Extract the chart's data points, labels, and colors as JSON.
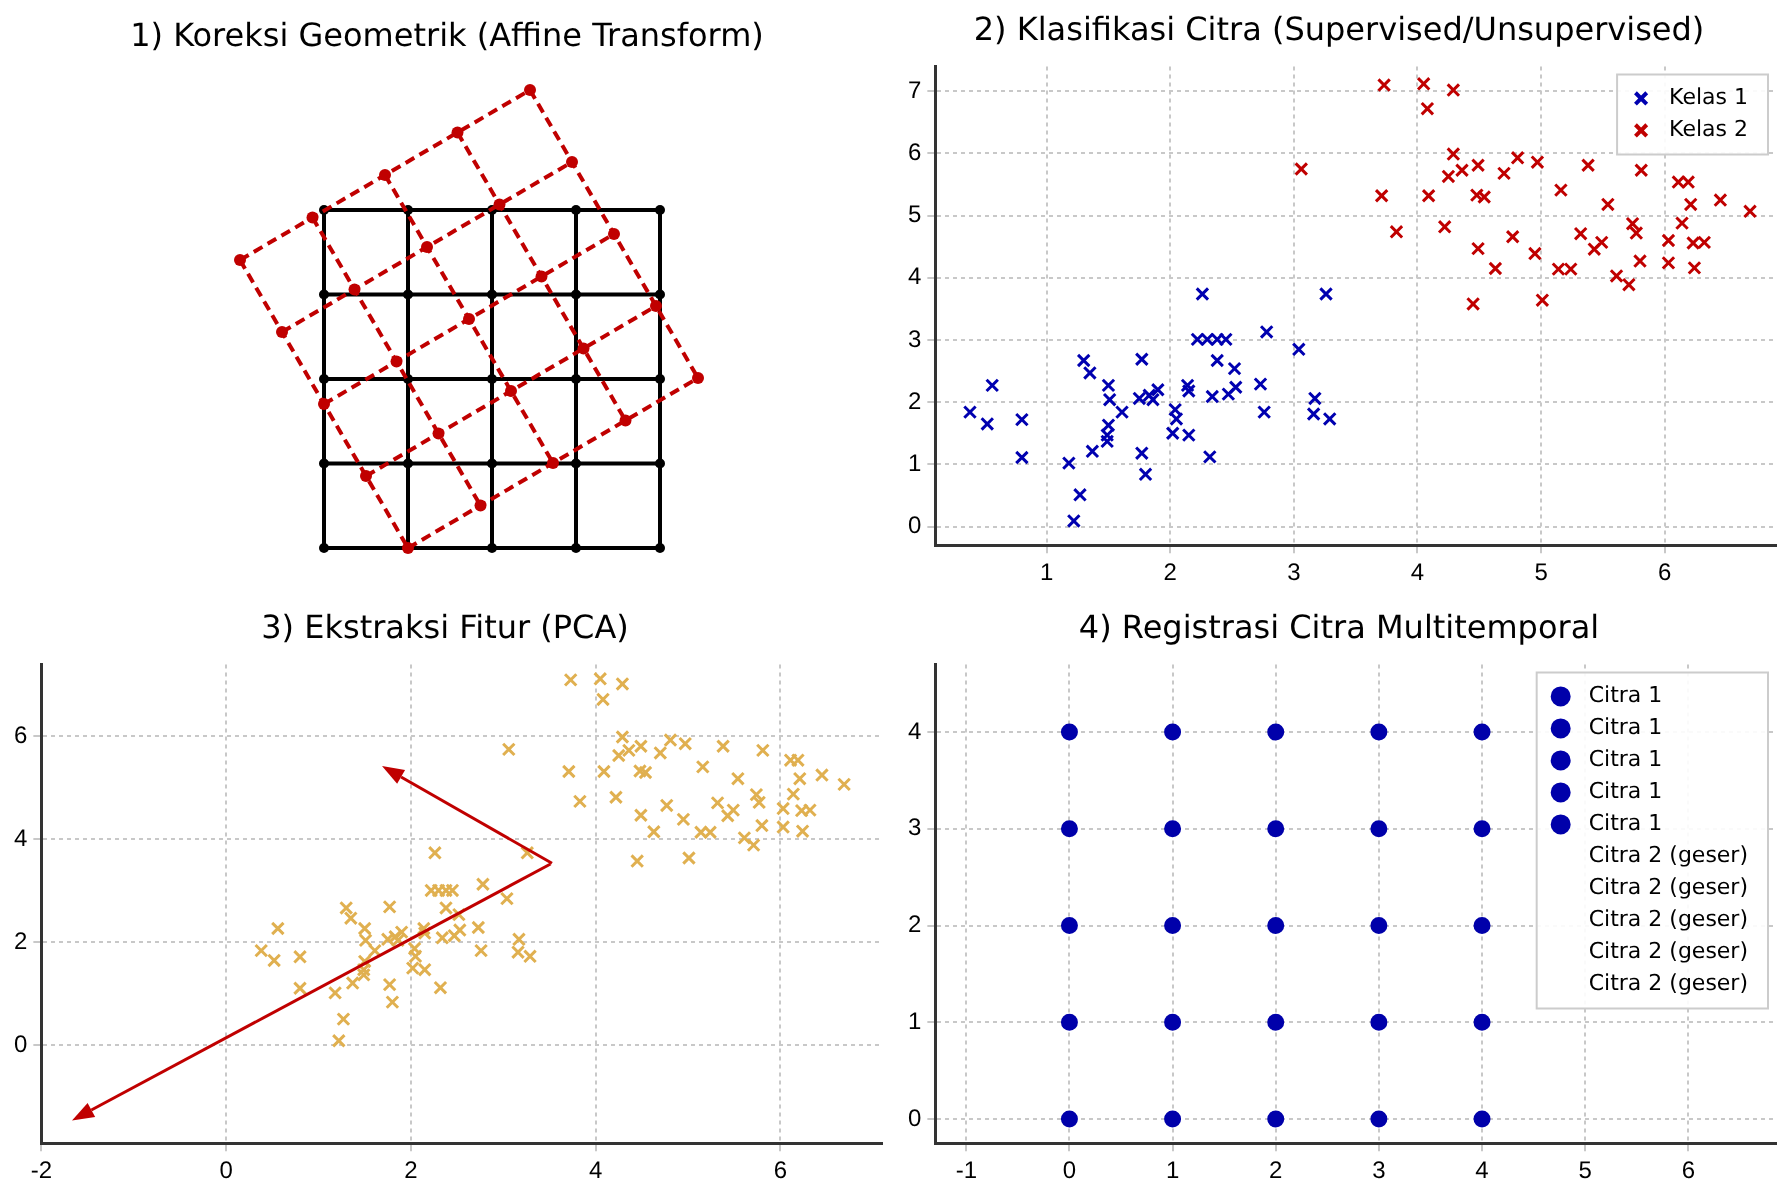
{
  "chart_data": [
    {
      "type": "other",
      "title": "1) Koreksi Geometrik (Affine Transform)"
    },
    {
      "type": "scatter",
      "title": "2) Klasifikasi Citra (Supervised/Unsupervised)",
      "xlim": [
        0.1,
        6.9
      ],
      "xticks": [
        1,
        2,
        3,
        4,
        5,
        6
      ],
      "ylim": [
        -0.3,
        7.4
      ],
      "yticks": [
        0,
        1,
        2,
        3,
        4,
        5,
        6,
        7
      ],
      "grid": true,
      "legend": "top right",
      "marker": "cross",
      "series": [
        {
          "name": "Kelas 1",
          "color": "#0000b0",
          "x": [
            2.26,
            3.26,
            2.78,
            3.04,
            2.22,
            2.3,
            2.38,
            2.45,
            2.38,
            2.52,
            1.3,
            1.35,
            0.56,
            1.77,
            1.5,
            1.51,
            1.61,
            1.75,
            1.83,
            1.9,
            1.86,
            2.14,
            2.15,
            2.34,
            2.47,
            2.53,
            2.73,
            2.76,
            3.17,
            3.16,
            3.29,
            2.04,
            2.05,
            2.02,
            2.15,
            1.5,
            1.49,
            1.49,
            1.37,
            1.77,
            1.8,
            2.32,
            0.38,
            0.52,
            0.8,
            0.8,
            1.18,
            1.27,
            1.22
          ],
          "values": [
            3.74,
            3.74,
            3.13,
            2.85,
            3.01,
            3.01,
            3.01,
            3.01,
            2.67,
            2.54,
            2.67,
            2.47,
            2.27,
            2.69,
            2.27,
            2.04,
            1.84,
            2.06,
            2.11,
            2.2,
            2.04,
            2.27,
            2.18,
            2.09,
            2.13,
            2.24,
            2.29,
            1.84,
            2.06,
            1.81,
            1.73,
            1.88,
            1.73,
            1.5,
            1.47,
            1.63,
            1.47,
            1.37,
            1.21,
            1.18,
            0.84,
            1.12,
            1.84,
            1.65,
            1.72,
            1.11,
            1.02,
            0.51,
            0.09
          ]
        },
        {
          "name": "Kelas 2",
          "color": "#c00000",
          "x": [
            3.73,
            4.05,
            4.29,
            4.08,
            3.06,
            3.71,
            3.83,
            4.09,
            4.22,
            4.29,
            4.25,
            4.36,
            4.49,
            4.48,
            4.54,
            4.7,
            4.81,
            4.97,
            4.49,
            4.63,
            4.77,
            4.95,
            4.45,
            5.01,
            5.16,
            5.38,
            5.54,
            5.32,
            5.43,
            5.49,
            5.14,
            5.24,
            5.61,
            5.71,
            5.74,
            5.77,
            5.8,
            5.81,
            6.03,
            6.03,
            6.14,
            6.11,
            6.19,
            6.21,
            6.23,
            6.32,
            6.24,
            6.45,
            6.69
          ],
          "values": [
            7.1,
            7.12,
            7.02,
            6.72,
            5.75,
            5.32,
            4.74,
            5.32,
            4.82,
            5.99,
            5.63,
            5.73,
            5.81,
            5.33,
            5.3,
            5.68,
            5.93,
            5.86,
            4.47,
            4.15,
            4.66,
            4.39,
            3.58,
            3.64,
            5.41,
            5.81,
            5.18,
            4.71,
            4.46,
            4.57,
            4.14,
            4.14,
            4.03,
            3.89,
            4.87,
            4.72,
            4.27,
            5.73,
            4.6,
            4.24,
            4.88,
            5.54,
            5.54,
            5.18,
            4.56,
            4.57,
            4.16,
            5.25,
            5.07
          ]
        }
      ]
    },
    {
      "type": "scatter",
      "title": "3) Ekstraksi Fitur (PCA)",
      "xlim": [
        -2,
        7.1
      ],
      "xticks": [
        -2,
        0,
        2,
        4,
        6
      ],
      "ylim": [
        -1.9,
        7.4
      ],
      "yticks": [
        0,
        2,
        4,
        6
      ],
      "grid": true,
      "marker": "cross",
      "series": [
        {
          "color": "#e0b050",
          "x": [
            2.26,
            3.26,
            2.78,
            3.04,
            2.22,
            2.3,
            2.38,
            2.45,
            2.38,
            2.52,
            1.3,
            1.35,
            0.56,
            1.77,
            1.5,
            1.51,
            1.61,
            1.75,
            1.83,
            1.9,
            1.86,
            2.14,
            2.15,
            2.34,
            2.47,
            2.53,
            2.73,
            2.76,
            3.17,
            3.16,
            3.29,
            2.04,
            2.05,
            2.02,
            2.15,
            1.5,
            1.49,
            1.49,
            1.37,
            1.77,
            1.8,
            2.32,
            0.38,
            0.52,
            0.8,
            0.8,
            1.18,
            1.27,
            1.22,
            3.73,
            4.05,
            4.29,
            4.08,
            3.06,
            3.71,
            3.83,
            4.09,
            4.22,
            4.29,
            4.25,
            4.36,
            4.49,
            4.48,
            4.54,
            4.7,
            4.81,
            4.97,
            4.49,
            4.63,
            4.77,
            4.95,
            4.45,
            5.01,
            5.16,
            5.38,
            5.54,
            5.32,
            5.43,
            5.49,
            5.14,
            5.24,
            5.61,
            5.71,
            5.74,
            5.77,
            5.8,
            5.81,
            6.03,
            6.03,
            6.14,
            6.11,
            6.19,
            6.21,
            6.23,
            6.32,
            6.24,
            6.45,
            6.69
          ],
          "values": [
            3.74,
            3.74,
            3.13,
            2.85,
            3.01,
            3.01,
            3.01,
            3.01,
            2.67,
            2.54,
            2.67,
            2.47,
            2.27,
            2.69,
            2.27,
            2.04,
            1.84,
            2.06,
            2.11,
            2.2,
            2.04,
            2.27,
            2.18,
            2.09,
            2.13,
            2.24,
            2.29,
            1.84,
            2.06,
            1.81,
            1.73,
            1.88,
            1.73,
            1.5,
            1.47,
            1.63,
            1.47,
            1.37,
            1.21,
            1.18,
            0.84,
            1.12,
            1.84,
            1.65,
            1.72,
            1.11,
            1.02,
            0.51,
            0.09,
            7.1,
            7.12,
            7.02,
            6.72,
            5.75,
            5.32,
            4.74,
            5.32,
            4.82,
            5.99,
            5.63,
            5.73,
            5.81,
            5.33,
            5.3,
            5.68,
            5.93,
            5.86,
            4.47,
            4.15,
            4.66,
            4.39,
            3.58,
            3.64,
            5.41,
            5.81,
            5.18,
            4.71,
            4.46,
            4.57,
            4.14,
            4.14,
            4.03,
            3.89,
            4.87,
            4.72,
            4.27,
            5.73,
            4.6,
            4.24,
            4.88,
            5.54,
            5.54,
            5.18,
            4.56,
            4.57,
            4.16,
            5.25,
            5.07
          ]
        }
      ]
    },
    {
      "type": "scatter",
      "title": "4) Registrasi Citra Multitemporal",
      "xlim": [
        -1.3,
        6.85
      ],
      "xticks": [
        -1,
        0,
        1,
        2,
        3,
        4,
        5,
        6
      ],
      "ylim": [
        -0.25,
        4.7
      ],
      "yticks": [
        0,
        1,
        2,
        3,
        4
      ],
      "grid": true,
      "legend": "top right",
      "marker": "circle",
      "x": [
        0,
        1,
        2,
        3,
        4
      ],
      "series": [
        {
          "name": "Citra 1",
          "color": "#0000aa",
          "values": [
            0,
            0,
            0,
            0,
            0
          ]
        },
        {
          "name": "Citra 1",
          "color": "#0000aa",
          "values": [
            1,
            1,
            1,
            1,
            1
          ]
        },
        {
          "name": "Citra 1",
          "color": "#0000aa",
          "values": [
            2,
            2,
            2,
            2,
            2
          ]
        },
        {
          "name": "Citra 1",
          "color": "#0000aa",
          "values": [
            3,
            3,
            3,
            3,
            3
          ]
        },
        {
          "name": "Citra 1",
          "color": "#0000aa",
          "values": [
            4,
            4,
            4,
            4,
            4
          ]
        },
        {
          "name": "Citra 2 (geser)",
          "values": [
            null,
            null,
            null,
            null,
            null
          ]
        },
        {
          "name": "Citra 2 (geser)",
          "values": [
            null,
            null,
            null,
            null,
            null
          ]
        },
        {
          "name": "Citra 2 (geser)",
          "values": [
            null,
            null,
            null,
            null,
            null
          ]
        },
        {
          "name": "Citra 2 (geser)",
          "values": [
            null,
            null,
            null,
            null,
            null
          ]
        },
        {
          "name": "Citra 2 (geser)",
          "values": [
            null,
            null,
            null,
            null,
            null
          ]
        }
      ]
    }
  ]
}
